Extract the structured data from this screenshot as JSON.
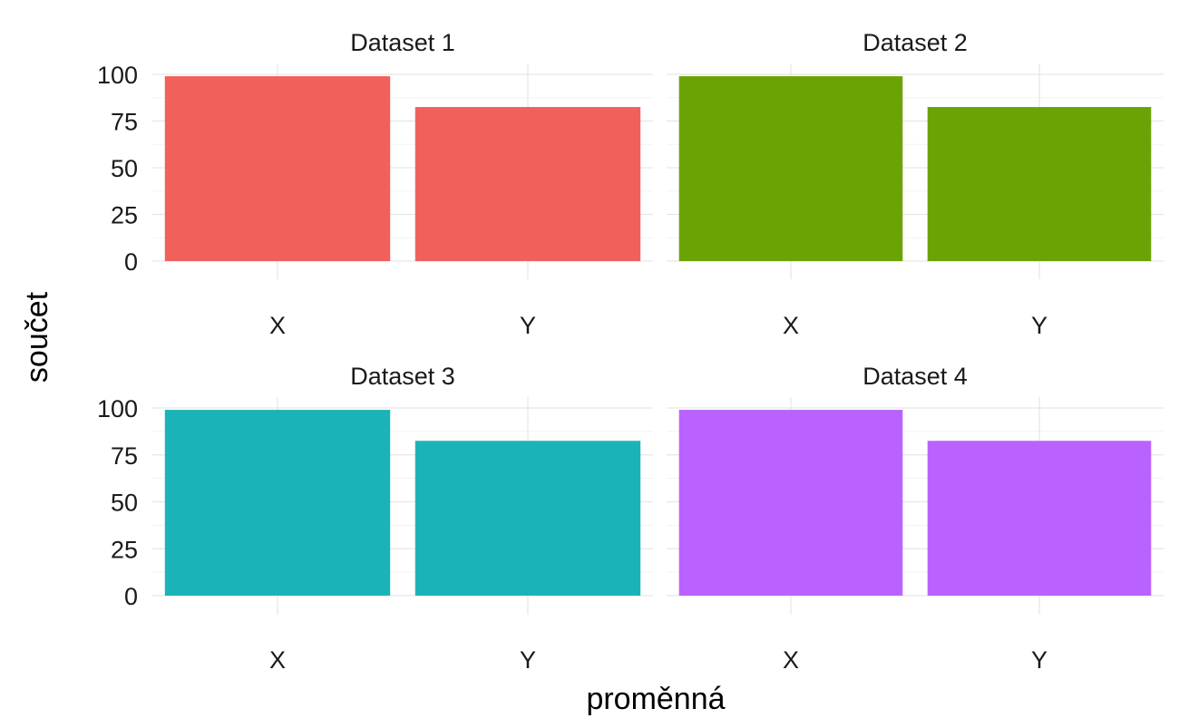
{
  "chart_data": {
    "type": "bar",
    "layout": "facet-grid-2x2",
    "xlabel": "proměnná",
    "ylabel": "součet",
    "ylim": [
      0,
      105
    ],
    "yticks": [
      0,
      25,
      50,
      75,
      100
    ],
    "grid": true,
    "legend": "none",
    "categories": [
      "X",
      "Y"
    ],
    "panels": [
      {
        "title": "Dataset 1",
        "color": "#F2605C",
        "values": [
          99,
          82.5
        ]
      },
      {
        "title": "Dataset 2",
        "color": "#6BA305",
        "values": [
          99,
          82.5
        ]
      },
      {
        "title": "Dataset 3",
        "color": "#1AB4B8",
        "values": [
          99,
          82.5
        ]
      },
      {
        "title": "Dataset 4",
        "color": "#BA62FF",
        "values": [
          99,
          82.5
        ]
      }
    ]
  }
}
